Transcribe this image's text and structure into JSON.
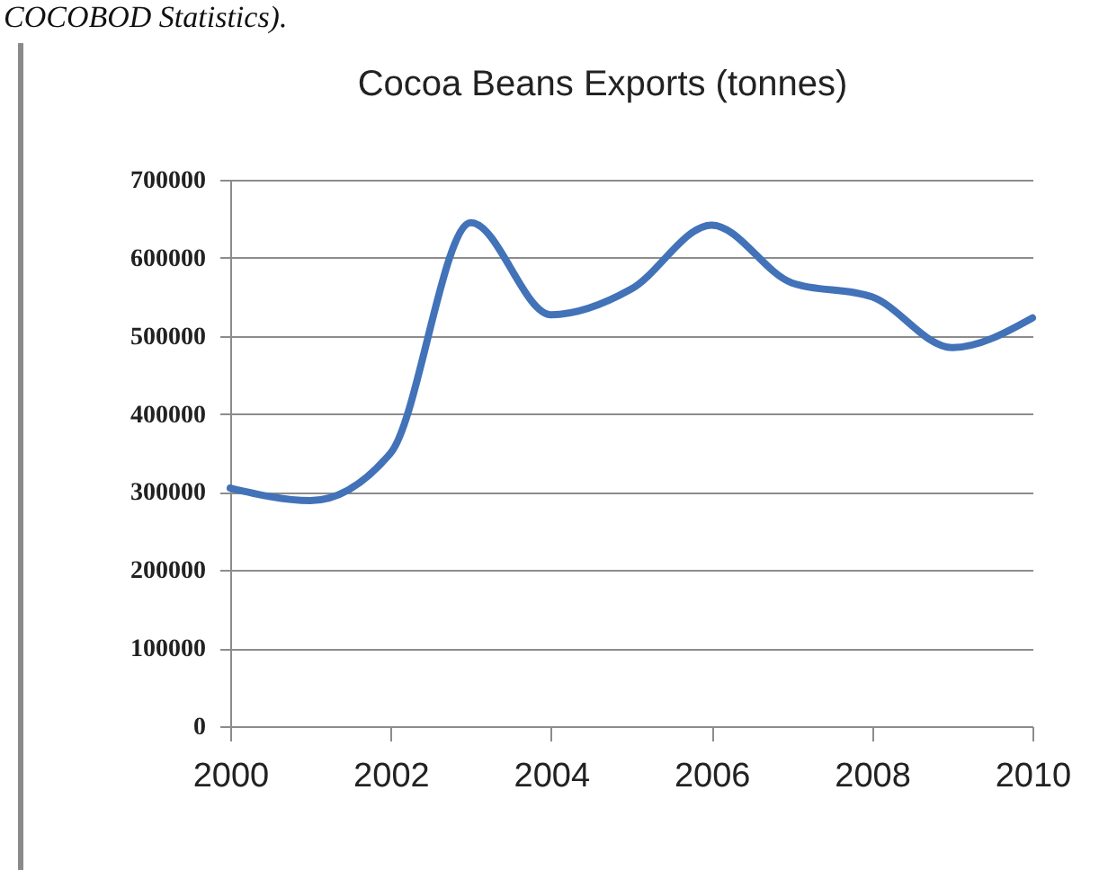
{
  "chart_data": {
    "type": "line",
    "title": "Cocoa Beans Exports (tonnes)",
    "annotations": [
      "COCOBOD Statistics)."
    ],
    "x": [
      2000,
      2001,
      2002,
      2003,
      2004,
      2005,
      2006,
      2007,
      2008,
      2009,
      2010
    ],
    "series": [
      {
        "color": "#4272b8",
        "values": [
          305000,
          289000,
          350000,
          645000,
          527000,
          560000,
          642000,
          568000,
          550000,
          485000,
          523000
        ]
      }
    ],
    "xlim": [
      2000,
      2010
    ],
    "xticks": [
      2000,
      2002,
      2004,
      2006,
      2008,
      2010
    ],
    "ylim": [
      0,
      700000
    ],
    "yticks": [
      0,
      100000,
      200000,
      300000,
      400000,
      500000,
      600000,
      700000
    ],
    "grid": "y"
  }
}
